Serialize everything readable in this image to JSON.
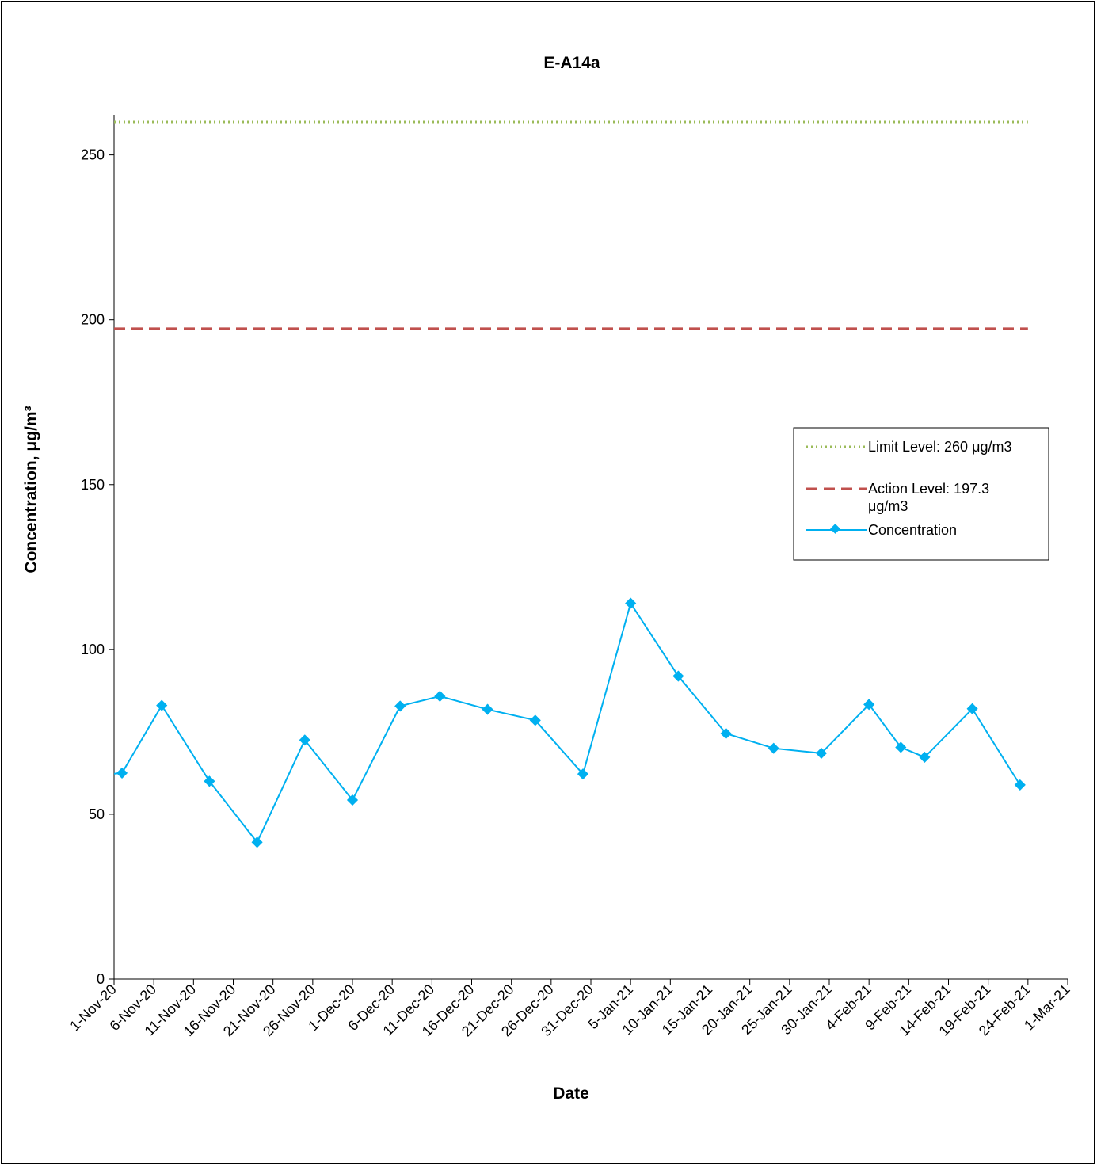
{
  "chart_data": {
    "type": "line",
    "title": "E-A14a",
    "xlabel": "Date",
    "ylabel": "Concentration, μg/m³",
    "ylim": [
      0,
      260
    ],
    "yticks": [
      0,
      50,
      100,
      150,
      200,
      250
    ],
    "xlim": [
      "2020-11-01",
      "2021-03-01"
    ],
    "xtick_labels": [
      "1-Nov-20",
      "6-Nov-20",
      "11-Nov-20",
      "16-Nov-20",
      "21-Nov-20",
      "26-Nov-20",
      "1-Dec-20",
      "6-Dec-20",
      "11-Dec-20",
      "16-Dec-20",
      "21-Dec-20",
      "26-Dec-20",
      "31-Dec-20",
      "5-Jan-21",
      "10-Jan-21",
      "15-Jan-21",
      "20-Jan-21",
      "25-Jan-21",
      "30-Jan-21",
      "4-Feb-21",
      "9-Feb-21",
      "14-Feb-21",
      "19-Feb-21",
      "24-Feb-21",
      "1-Mar-21"
    ],
    "grid": false,
    "legend_position": "right",
    "series": [
      {
        "name": "Limit Level: 260 μg/m3",
        "style": "dotted",
        "color": "#9bbb59",
        "x": [
          "2020-11-01",
          "2021-02-24"
        ],
        "values": [
          260,
          260
        ]
      },
      {
        "name": "Action Level: 197.3 μg/m3",
        "style": "dashed",
        "color": "#c0504d",
        "x": [
          "2020-11-01",
          "2021-02-24"
        ],
        "values": [
          197.3,
          197.3
        ]
      },
      {
        "name": "Concentration",
        "style": "solid-diamond",
        "color": "#00b0f0",
        "x": [
          "2020-11-02",
          "2020-11-07",
          "2020-11-13",
          "2020-11-19",
          "2020-11-25",
          "2020-12-01",
          "2020-12-07",
          "2020-12-12",
          "2020-12-18",
          "2020-12-24",
          "2020-12-30",
          "2021-01-05",
          "2021-01-11",
          "2021-01-17",
          "2021-01-23",
          "2021-01-29",
          "2021-02-04",
          "2021-02-08",
          "2021-02-11",
          "2021-02-17",
          "2021-02-23"
        ],
        "values": [
          62.5,
          83,
          60,
          41.5,
          72.5,
          54.3,
          82.8,
          85.8,
          81.8,
          78.5,
          62.2,
          114,
          91.9,
          74.5,
          70,
          68.5,
          83.3,
          70.3,
          67.3,
          82,
          58.9
        ]
      }
    ]
  }
}
